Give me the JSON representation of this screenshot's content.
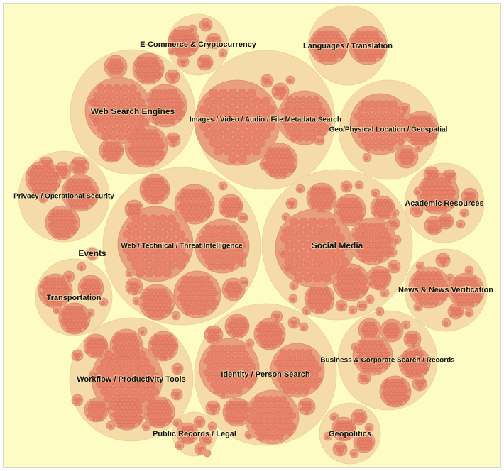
{
  "diagram": {
    "type": "circle-packing",
    "colors": {
      "background": "#fdfcc4",
      "group_fill": "#f5dba8",
      "subgroup_fill": "#e79f80",
      "subgroup_stroke": "#dd8a6c",
      "leaf_fill": "#e8836a",
      "leaf_stroke": "#d97159",
      "label": "#111111"
    },
    "groups": [
      {
        "id": "ecommerce",
        "label": "E-Commerce & Cryptocurrency"
      },
      {
        "id": "languages",
        "label": "Languages / Translation"
      },
      {
        "id": "websearch",
        "label": "Web Search Engines"
      },
      {
        "id": "images",
        "label": "Images / Video / Audio / File Metadata Search"
      },
      {
        "id": "geo",
        "label": "Geo/Physical Location / Geospatial"
      },
      {
        "id": "privacy",
        "label": "Privacy / Operational Security"
      },
      {
        "id": "academic",
        "label": "Academic Resources"
      },
      {
        "id": "webtech",
        "label": "Web / Technical / Threat Intelligence"
      },
      {
        "id": "social",
        "label": "Social Media"
      },
      {
        "id": "events",
        "label": "Events"
      },
      {
        "id": "news",
        "label": "News & News Verification"
      },
      {
        "id": "transport",
        "label": "Transportation"
      },
      {
        "id": "business",
        "label": "Business & Corporate Search / Records"
      },
      {
        "id": "workflow",
        "label": "Workflow / Productivity Tools"
      },
      {
        "id": "identity",
        "label": "Identity / Person Search"
      },
      {
        "id": "public",
        "label": "Public Records / Legal"
      },
      {
        "id": "geopolitics",
        "label": "Geopolitics"
      }
    ]
  }
}
